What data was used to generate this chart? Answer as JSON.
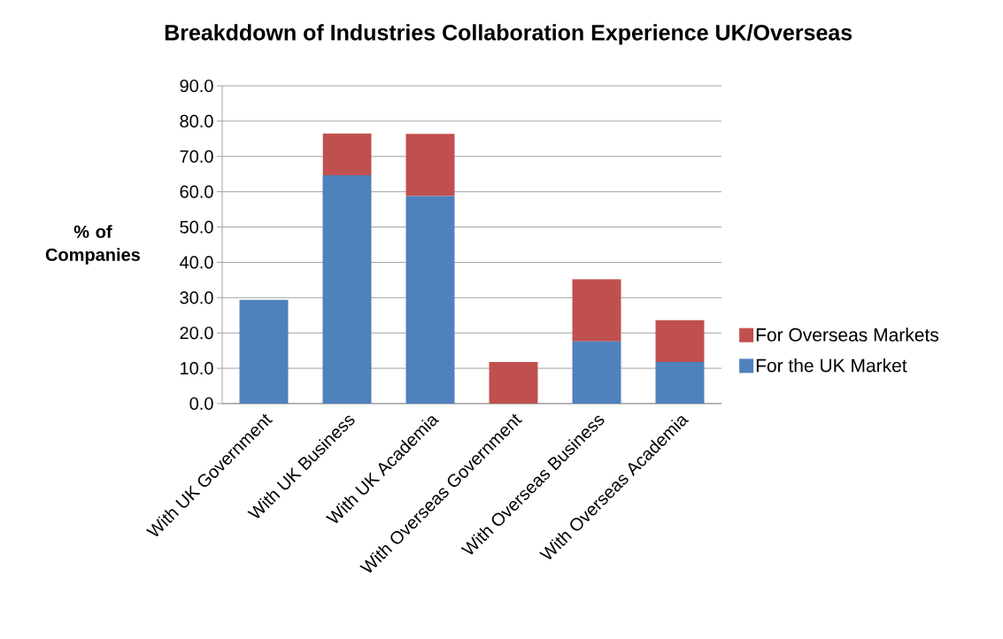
{
  "chart_data": {
    "type": "bar",
    "stacked": true,
    "title": "Breakddown of Industries Collaboration Experience UK/Overseas",
    "ylabel": "% of Companies",
    "categories": [
      "With UK Government",
      "With UK Business",
      "With UK Academia",
      "With Overseas Government",
      "With Overseas Business",
      "With Overseas Academia"
    ],
    "series": [
      {
        "name": "For the UK Market",
        "color": "#4f81bd",
        "values": [
          29.4,
          64.7,
          58.8,
          0,
          17.6,
          11.8
        ]
      },
      {
        "name": "For Overseas Markets",
        "color": "#c0504d",
        "values": [
          0,
          11.8,
          17.6,
          11.8,
          17.6,
          11.8
        ]
      }
    ],
    "ylim": [
      0,
      90
    ],
    "yticks": [
      {
        "value": 0,
        "label": "0.0"
      },
      {
        "value": 10,
        "label": "10.0"
      },
      {
        "value": 20,
        "label": "20.0"
      },
      {
        "value": 30,
        "label": "30.0"
      },
      {
        "value": 40,
        "label": "40.0"
      },
      {
        "value": 50,
        "label": "50.0"
      },
      {
        "value": 60,
        "label": "60.0"
      },
      {
        "value": 70,
        "label": "70.0"
      },
      {
        "value": 80,
        "label": "80.0"
      },
      {
        "value": 90,
        "label": "90.0"
      }
    ],
    "grid": "y",
    "legend": "right"
  }
}
